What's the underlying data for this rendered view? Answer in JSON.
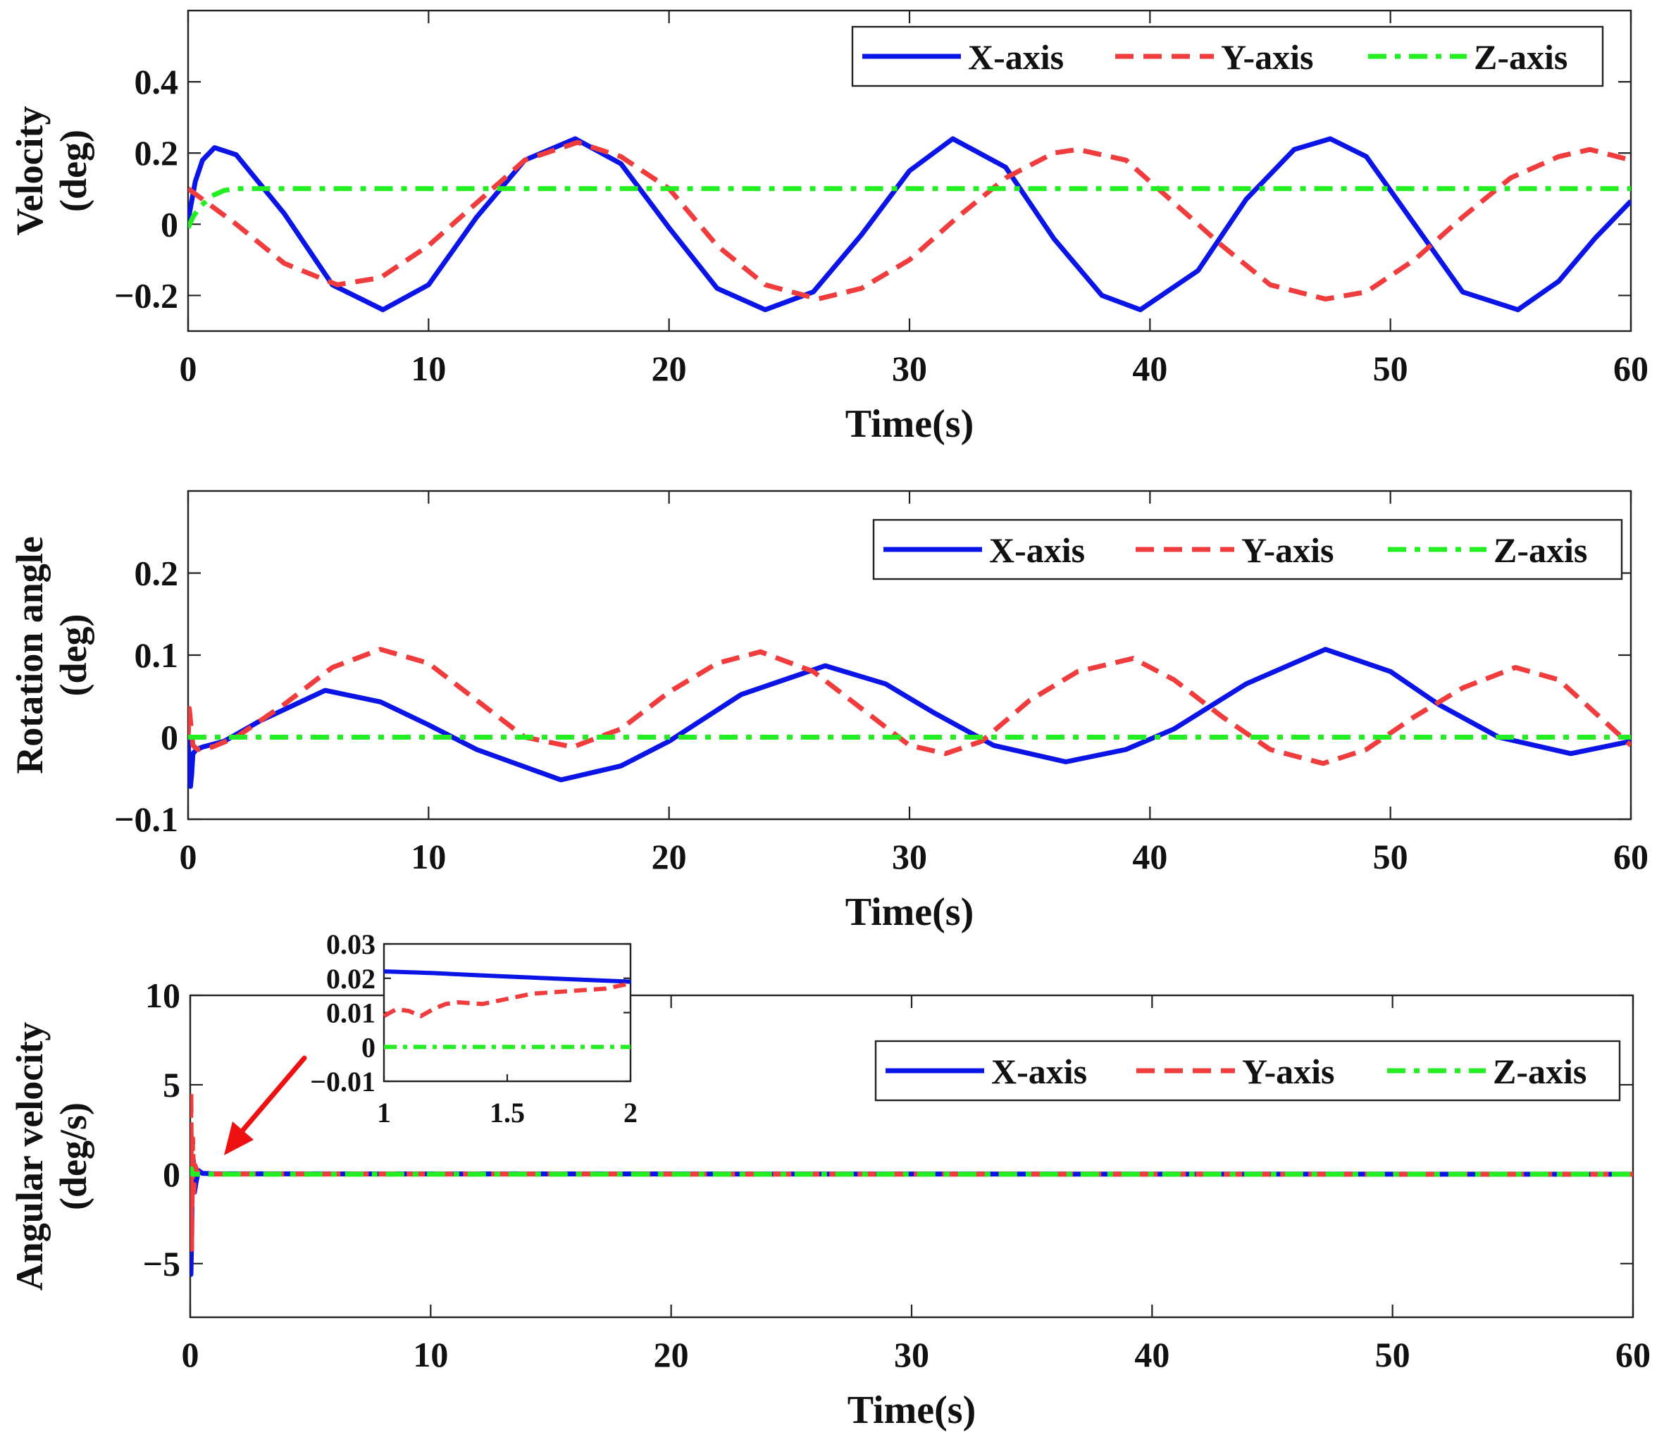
{
  "colors": {
    "x_axis": "#0b14e6",
    "y_axis": "#f03c3c",
    "z_axis": "#22ee22",
    "arrow": "#ee1111",
    "frame": "#222222"
  },
  "chart_data": [
    {
      "type": "line",
      "id": "velocity",
      "title": "",
      "ylabel": [
        "Velocity",
        "(deg)"
      ],
      "xlabel": "Time(s)",
      "xlim": [
        0,
        60
      ],
      "ylim": [
        -0.3,
        0.6
      ],
      "xticks": [
        0,
        10,
        20,
        30,
        40,
        50,
        60
      ],
      "xtick_labels": [
        "0",
        "10",
        "20",
        "30",
        "40",
        "50",
        "60"
      ],
      "yticks": [
        -0.2,
        0,
        0.2,
        0.4
      ],
      "ytick_labels": [
        "−0.2",
        "0",
        "0.2",
        "0.4"
      ],
      "legend": [
        "X-axis",
        "Y-axis",
        "Z-axis"
      ],
      "legend_position": "top-right",
      "series": [
        {
          "name": "X-axis",
          "style": "solid",
          "color": "#0b14e6",
          "x": [
            0,
            0.3,
            0.6,
            1.1,
            2,
            4,
            6,
            8.1,
            10,
            12,
            14,
            16.1,
            18,
            20,
            22,
            24,
            26,
            28,
            30,
            31.8,
            34,
            36,
            38,
            39.6,
            42,
            44,
            46,
            47.5,
            49,
            51,
            53,
            55.3,
            57,
            58.5,
            60
          ],
          "y": [
            0.01,
            0.12,
            0.18,
            0.215,
            0.195,
            0.03,
            -0.17,
            -0.24,
            -0.17,
            0.02,
            0.18,
            0.24,
            0.17,
            -0.01,
            -0.18,
            -0.24,
            -0.19,
            -0.03,
            0.15,
            0.24,
            0.16,
            -0.04,
            -0.2,
            -0.24,
            -0.13,
            0.07,
            0.21,
            0.24,
            0.19,
            0.0,
            -0.19,
            -0.24,
            -0.16,
            -0.04,
            0.065
          ]
        },
        {
          "name": "Y-axis",
          "style": "dashed",
          "color": "#f03c3c",
          "x": [
            0,
            0.5,
            1,
            2,
            4,
            6.2,
            8,
            10,
            12,
            14,
            16.2,
            18,
            20,
            22,
            24,
            26.2,
            28,
            30,
            32,
            34,
            36,
            37,
            39,
            41,
            43,
            45,
            47.3,
            49,
            51,
            53,
            55,
            57,
            58.3,
            60
          ],
          "y": [
            0.1,
            0.075,
            0.05,
            0.0,
            -0.11,
            -0.17,
            -0.15,
            -0.06,
            0.06,
            0.18,
            0.23,
            0.19,
            0.1,
            -0.06,
            -0.17,
            -0.21,
            -0.18,
            -0.1,
            0.02,
            0.13,
            0.2,
            0.21,
            0.18,
            0.06,
            -0.06,
            -0.17,
            -0.21,
            -0.19,
            -0.1,
            0.02,
            0.13,
            0.19,
            0.21,
            0.18
          ]
        },
        {
          "name": "Z-axis",
          "style": "dashdot",
          "color": "#22ee22",
          "x": [
            0,
            0.2,
            0.5,
            1,
            1.5,
            2,
            3,
            60
          ],
          "y": [
            -0.01,
            0.02,
            0.05,
            0.08,
            0.095,
            0.1,
            0.1,
            0.1
          ]
        }
      ]
    },
    {
      "type": "line",
      "id": "rotation",
      "title": "",
      "ylabel": [
        "Rotation angle",
        "(deg)"
      ],
      "xlabel": "Time(s)",
      "xlim": [
        0,
        60
      ],
      "ylim": [
        -0.1,
        0.3
      ],
      "xticks": [
        0,
        10,
        20,
        30,
        40,
        50,
        60
      ],
      "xtick_labels": [
        "0",
        "10",
        "20",
        "30",
        "40",
        "50",
        "60"
      ],
      "yticks": [
        -0.1,
        0,
        0.1,
        0.2
      ],
      "ytick_labels": [
        "−0.1",
        "0",
        "0.1",
        "0.2"
      ],
      "legend": [
        "X-axis",
        "Y-axis",
        "Z-axis"
      ],
      "legend_position": "top-right",
      "series": [
        {
          "name": "X-axis",
          "style": "solid",
          "color": "#0b14e6",
          "x": [
            0,
            0.05,
            0.1,
            0.15,
            0.2,
            0.35,
            0.6,
            1.5,
            3,
            5.7,
            8,
            10,
            12,
            15.5,
            18,
            20,
            23,
            26.5,
            29,
            31,
            33.5,
            36.5,
            39,
            41,
            44,
            47.3,
            50,
            52,
            54.5,
            57.5,
            60
          ],
          "y": [
            0,
            -0.04,
            -0.06,
            -0.045,
            -0.02,
            -0.015,
            -0.012,
            -0.005,
            0.02,
            0.057,
            0.043,
            0.015,
            -0.015,
            -0.052,
            -0.035,
            -0.005,
            0.052,
            0.087,
            0.065,
            0.03,
            -0.01,
            -0.03,
            -0.015,
            0.01,
            0.065,
            0.107,
            0.08,
            0.04,
            0.0,
            -0.02,
            -0.005
          ]
        },
        {
          "name": "Y-axis",
          "style": "dashed",
          "color": "#f03c3c",
          "x": [
            0,
            0.05,
            0.1,
            0.2,
            0.4,
            1,
            2,
            4,
            6,
            8,
            10,
            12,
            14,
            16,
            18,
            20,
            22,
            23.8,
            26,
            28,
            30,
            31.5,
            33,
            35,
            37,
            39.3,
            41,
            43,
            45,
            47.2,
            49,
            51,
            53,
            55.2,
            57,
            58.5,
            60
          ],
          "y": [
            0,
            0.035,
            0.02,
            -0.01,
            -0.015,
            -0.012,
            0.0,
            0.04,
            0.085,
            0.107,
            0.09,
            0.045,
            0.0,
            -0.012,
            0.01,
            0.055,
            0.09,
            0.104,
            0.08,
            0.035,
            -0.01,
            -0.02,
            -0.005,
            0.045,
            0.08,
            0.096,
            0.07,
            0.025,
            -0.015,
            -0.032,
            -0.015,
            0.025,
            0.06,
            0.085,
            0.07,
            0.03,
            -0.01
          ]
        },
        {
          "name": "Z-axis",
          "style": "dashdot",
          "color": "#22ee22",
          "x": [
            0,
            60
          ],
          "y": [
            0,
            0
          ]
        }
      ]
    },
    {
      "type": "line",
      "id": "angular_velocity",
      "title": "",
      "ylabel": [
        "Angular velocity",
        "(deg/s)"
      ],
      "xlabel": "Time(s)",
      "xlim": [
        0,
        60
      ],
      "ylim": [
        -8,
        10
      ],
      "xticks": [
        0,
        10,
        20,
        30,
        40,
        50,
        60
      ],
      "xtick_labels": [
        "0",
        "10",
        "20",
        "30",
        "40",
        "50",
        "60"
      ],
      "yticks": [
        -5,
        0,
        5,
        10
      ],
      "ytick_labels": [
        "−5",
        "0",
        "5",
        "10"
      ],
      "legend": [
        "X-axis",
        "Y-axis",
        "Z-axis"
      ],
      "legend_position": "top-right",
      "series": [
        {
          "name": "X-axis",
          "style": "solid",
          "color": "#0b14e6",
          "x": [
            0,
            0.03,
            0.06,
            0.09,
            0.13,
            0.18,
            0.25,
            0.35,
            0.5,
            1,
            60
          ],
          "y": [
            0,
            -5.6,
            -3.5,
            0.5,
            0.8,
            -1.0,
            -0.4,
            0.2,
            0.05,
            0.02,
            0.0
          ]
        },
        {
          "name": "Y-axis",
          "style": "dashed",
          "color": "#f03c3c",
          "x": [
            0,
            0.03,
            0.06,
            0.1,
            0.15,
            0.2,
            0.3,
            0.5,
            1,
            60
          ],
          "y": [
            0,
            4.6,
            -4.2,
            2.0,
            -1.0,
            0.5,
            0.1,
            0.02,
            0.01,
            0.0
          ]
        },
        {
          "name": "Z-axis",
          "style": "dashdot",
          "color": "#22ee22",
          "x": [
            0,
            0.05,
            0.1,
            60
          ],
          "y": [
            0,
            0.3,
            0.0,
            0.0
          ]
        }
      ],
      "inset": {
        "xlim": [
          1,
          2
        ],
        "ylim": [
          -0.01,
          0.03
        ],
        "xticks": [
          1,
          1.5,
          2
        ],
        "xtick_labels": [
          "1",
          "1.5",
          "2"
        ],
        "yticks": [
          -0.01,
          0,
          0.01,
          0.02,
          0.03
        ],
        "ytick_labels": [
          "−0.01",
          "0",
          "0.01",
          "0.02",
          "0.03"
        ],
        "series": [
          {
            "name": "X-axis",
            "style": "solid",
            "color": "#0b14e6",
            "x": [
              1,
              1.2,
              1.4,
              1.6,
              1.8,
              2
            ],
            "y": [
              0.022,
              0.0215,
              0.0208,
              0.0202,
              0.0196,
              0.019
            ]
          },
          {
            "name": "Y-axis",
            "style": "dashed",
            "color": "#f03c3c",
            "x": [
              1,
              1.05,
              1.1,
              1.15,
              1.2,
              1.25,
              1.3,
              1.4,
              1.5,
              1.6,
              1.7,
              1.8,
              1.9,
              2
            ],
            "y": [
              0.009,
              0.011,
              0.0105,
              0.009,
              0.011,
              0.0125,
              0.013,
              0.0125,
              0.014,
              0.0155,
              0.016,
              0.0165,
              0.017,
              0.0185
            ]
          },
          {
            "name": "Z-axis",
            "style": "dashdot",
            "color": "#22ee22",
            "x": [
              1,
              2
            ],
            "y": [
              0.0,
              0.0
            ]
          }
        ]
      }
    }
  ]
}
